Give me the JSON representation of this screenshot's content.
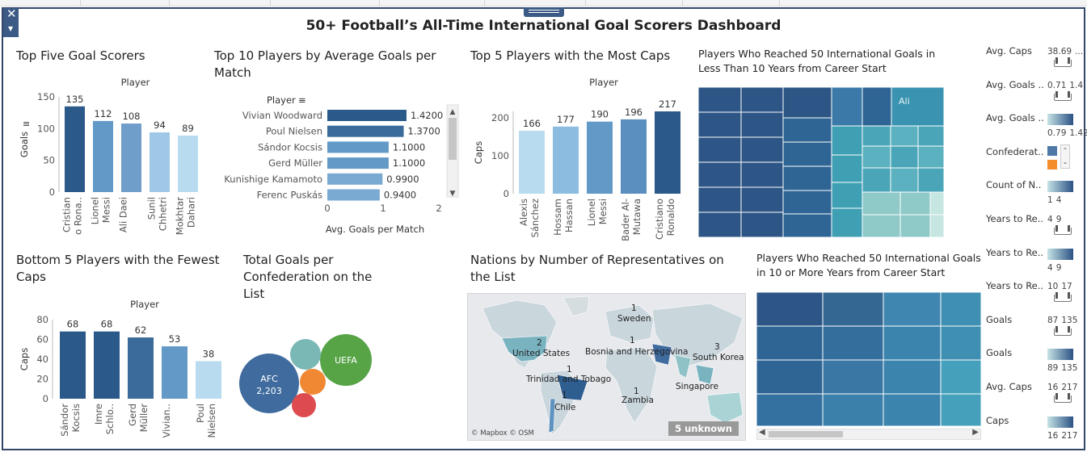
{
  "dashboard": {
    "title": "50+ Football’s All-Time International Goal Scorers Dashboard"
  },
  "colors": {
    "dark": "#2b5a8a",
    "mid_dark": "#3a72a8",
    "mid": "#6399c7",
    "light": "#8cbde0",
    "lightest": "#b9dbf0",
    "frame": "#33476b"
  },
  "panels": {
    "top_five": {
      "title": "Top Five Goal Scorers",
      "chart_data": {
        "type": "bar",
        "header": "Player",
        "ylabel": "Goals",
        "ylim": [
          0,
          150
        ],
        "yticks": [
          0,
          50,
          100,
          150
        ],
        "categories": [
          [
            "Cristian",
            "o Rona.."
          ],
          [
            "Lionel",
            "Messi"
          ],
          [
            "Ali Daei"
          ],
          [
            "Sunil",
            "Chhetri"
          ],
          [
            "Mokhtar",
            "Dahari"
          ]
        ],
        "values": [
          135,
          112,
          108,
          94,
          89
        ],
        "colors": [
          "#2b5a8a",
          "#6399c7",
          "#6f9ecb",
          "#9ec8e6",
          "#b9dbf0"
        ]
      }
    },
    "avg_goals": {
      "title": "Top 10 Players by Average Goals per Match",
      "chart_data": {
        "type": "bar",
        "orientation": "horizontal",
        "header": "Player",
        "xlabel": "Avg. Goals per Match",
        "xlim": [
          0,
          2
        ],
        "xticks": [
          0,
          1,
          2
        ],
        "categories": [
          "Vivian Woodward",
          "Poul Nielsen",
          "Sándor Kocsis",
          "Gerd Müller",
          "Kunishige Kamamoto",
          "Ferenc Puskás"
        ],
        "values": [
          1.42,
          1.37,
          1.1,
          1.1,
          0.99,
          0.94
        ],
        "labels": [
          "1.4200",
          "1.3700",
          "1.1000",
          "1.1000",
          "0.9900",
          "0.9400"
        ],
        "colors": [
          "#2b5a8a",
          "#3a6b9b",
          "#6399c7",
          "#6399c7",
          "#7aaad2",
          "#7aaad2"
        ]
      }
    },
    "most_caps": {
      "title": "Top 5 Players with the Most Caps",
      "chart_data": {
        "type": "bar",
        "header": "Player",
        "ylabel": "Caps",
        "ylim": [
          0,
          217
        ],
        "yticks": [
          0,
          100,
          200
        ],
        "categories": [
          [
            "Alexis",
            "Sánchez"
          ],
          [
            "Hossam",
            "Hassan"
          ],
          [
            "Lionel",
            "Messi"
          ],
          [
            "Bader Al-",
            "Mutawa"
          ],
          [
            "Cristiano",
            "Ronaldo"
          ]
        ],
        "values": [
          166,
          177,
          190,
          196,
          217
        ],
        "colors": [
          "#b9dbf0",
          "#8cbde0",
          "#6399c7",
          "#5b8fc0",
          "#2b5a8a"
        ]
      }
    },
    "fewest_caps": {
      "title": "Bottom 5 Players with the Fewest Caps",
      "chart_data": {
        "type": "bar",
        "header": "Player",
        "ylabel": "Caps",
        "ylim": [
          0,
          80
        ],
        "yticks": [
          0,
          20,
          40,
          60,
          80
        ],
        "categories": [
          [
            "Sándor",
            "Kocsis"
          ],
          [
            "Imre",
            "Schlo.."
          ],
          [
            "Gerd",
            "Müller"
          ],
          [
            "Vivian.."
          ],
          [
            "Poul",
            "Nielsen"
          ]
        ],
        "values": [
          68,
          68,
          62,
          53,
          38
        ],
        "colors": [
          "#2b5a8a",
          "#2b5a8a",
          "#3a6b9b",
          "#6399c7",
          "#b9dbf0"
        ]
      }
    },
    "confederation": {
      "title": "Total Goals per Confederation on the List",
      "bubbles": [
        {
          "name": "AFC",
          "value": "2,203",
          "color": "#3f6b9e"
        },
        {
          "name": "UEFA",
          "value": "",
          "color": "#57a447"
        },
        {
          "name": "",
          "value": "",
          "color": "#7ab8b6"
        },
        {
          "name": "",
          "value": "",
          "color": "#f08833"
        },
        {
          "name": "",
          "value": "",
          "color": "#dd4b50"
        }
      ]
    },
    "nations_map": {
      "title": "Nations by Number of Representatives on the List",
      "labels": [
        {
          "country": "United States",
          "count": "2"
        },
        {
          "country": "Sweden",
          "count": "1"
        },
        {
          "country": "Bosnia and Herzegovina",
          "count": "1"
        },
        {
          "country": "South Korea",
          "count": "3"
        },
        {
          "country": "Trinidad and Tobago",
          "count": "1"
        },
        {
          "country": "Singapore",
          "count": ""
        },
        {
          "country": "Zambia",
          "count": "1"
        },
        {
          "country": "Chile",
          "count": "1"
        }
      ],
      "attribution": "© Mapbox © OSM",
      "unknown_badge": "5 unknown"
    },
    "treemap_fast": {
      "title": "Players Who Reached 50 International Goals in Less Than 10 Years from Career Start",
      "highlight_label": "Ali"
    },
    "treemap_slow": {
      "title": "Players Who Reached 50 International Goals in 10 or More Years from Career Start"
    }
  },
  "sidebar": {
    "items": [
      {
        "label": "Avg. Caps",
        "values": [
          "38.69",
          "..."
        ],
        "control": "slider"
      },
      {
        "label": "Avg. Goals ..",
        "values": [
          "0.71",
          "1.4"
        ],
        "control": "slider"
      },
      {
        "label": "Avg. Goals ..",
        "values": [
          "0.79",
          "1.42"
        ],
        "control": "gradient"
      },
      {
        "label": "Confederat..",
        "values": [],
        "control": "swatches"
      },
      {
        "label": "Count of N..",
        "values": [
          "1",
          "4"
        ],
        "control": "gradient"
      },
      {
        "label": "Years to Re..",
        "values": [
          "4",
          "9"
        ],
        "control": "slider"
      },
      {
        "label": "Years to Re..",
        "values": [
          "4",
          "9"
        ],
        "control": "gradient"
      },
      {
        "label": "Years to Re..",
        "values": [
          "10",
          "17"
        ],
        "control": "slider"
      },
      {
        "label": "Goals",
        "values": [
          "87",
          "135"
        ],
        "control": "slider"
      },
      {
        "label": "Goals",
        "values": [
          "89",
          "135"
        ],
        "control": "gradient"
      },
      {
        "label": "Avg. Caps",
        "values": [
          "16",
          "217"
        ],
        "control": "slider"
      },
      {
        "label": "Caps",
        "values": [
          "16",
          "217"
        ],
        "control": "gradient"
      }
    ],
    "swatch_colors": [
      "#4e79a7",
      "#f28e2b"
    ]
  }
}
